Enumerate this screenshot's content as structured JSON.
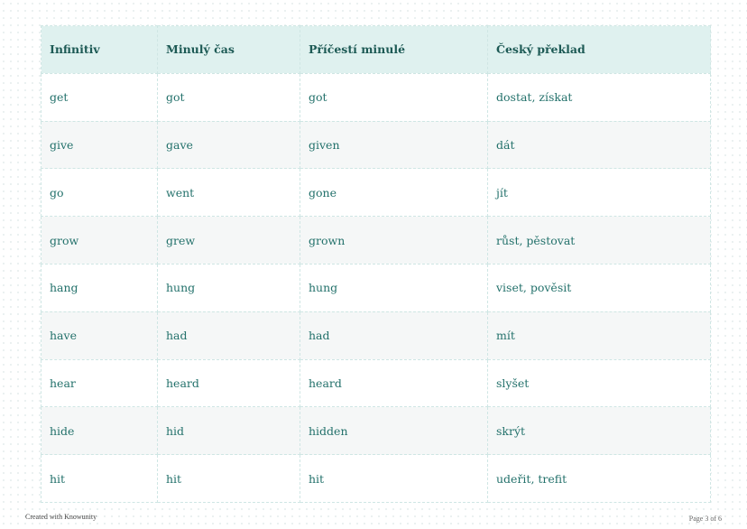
{
  "table": {
    "headers": [
      "Infinitiv",
      "Minulý čas",
      "Příčestí minulé",
      "Český překlad"
    ],
    "rows": [
      [
        "get",
        "got",
        "got",
        "dostat, získat"
      ],
      [
        "give",
        "gave",
        "given",
        "dát"
      ],
      [
        "go",
        "went",
        "gone",
        "jít"
      ],
      [
        "grow",
        "grew",
        "grown",
        "růst, pěstovat"
      ],
      [
        "hang",
        "hung",
        "hung",
        "viset, pověsit"
      ],
      [
        "have",
        "had",
        "had",
        "mít"
      ],
      [
        "hear",
        "heard",
        "heard",
        "slyšet"
      ],
      [
        "hide",
        "hid",
        "hidden",
        "skrýt"
      ],
      [
        "hit",
        "hit",
        "hit",
        "udeřit, trefit"
      ]
    ]
  },
  "footer": {
    "left": "Created with Knowunity",
    "right": "Page 3 of 6"
  },
  "colors": {
    "header_bg": "#dff1ef",
    "header_text": "#1d5a55",
    "cell_text": "#23716b",
    "alt_row": "#f5f7f7"
  }
}
